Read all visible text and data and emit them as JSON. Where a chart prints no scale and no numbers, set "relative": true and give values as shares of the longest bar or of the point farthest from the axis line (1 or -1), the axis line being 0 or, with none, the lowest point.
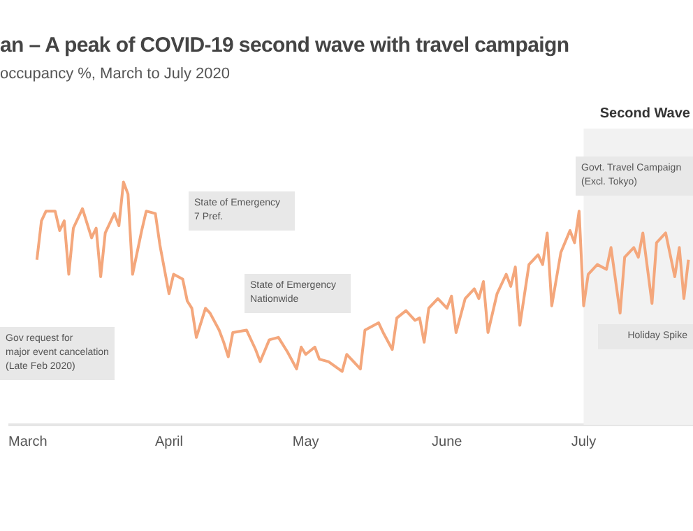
{
  "chart_data": {
    "type": "line",
    "title": "an – A peak of COVID-19 second wave with travel campaign",
    "subtitle": "occupancy %, March to July 2020",
    "relative": true,
    "grid": false,
    "legend": false,
    "marker": "none",
    "line_style": "solid",
    "tick_labels": "x",
    "xlim": [
      "--02-25",
      "--07-25"
    ],
    "xticks": [
      {
        "value": "--03-01",
        "label": "March"
      },
      {
        "value": "--04-01",
        "label": "April"
      },
      {
        "value": "--05-01",
        "label": "May"
      },
      {
        "value": "--06-01",
        "label": "June"
      },
      {
        "value": "--07-01",
        "label": "July"
      }
    ],
    "series": [
      {
        "color": "#f4a77c",
        "x": [
          "--03-03",
          "--03-04",
          "--03-05",
          "--03-07",
          "--03-08",
          "--03-09",
          "--03-10",
          "--03-11",
          "--03-13",
          "--03-15",
          "--03-16",
          "--03-17",
          "--03-18",
          "--03-20",
          "--03-21",
          "--03-22",
          "--03-23",
          "--03-24",
          "--03-26",
          "--03-27",
          "--03-29",
          "--03-30",
          "--04-01",
          "--04-02",
          "--04-03",
          "--04-04",
          "--04-05",
          "--04-06",
          "--04-07",
          "--04-09",
          "--04-10",
          "--04-12",
          "--04-13",
          "--04-14",
          "--04-15",
          "--04-18",
          "--04-20",
          "--04-21",
          "--04-23",
          "--04-25",
          "--04-27",
          "--04-29",
          "--04-30",
          "--05-01",
          "--05-03",
          "--05-04",
          "--05-06",
          "--05-09",
          "--05-10",
          "--05-11",
          "--05-13",
          "--05-14",
          "--05-17",
          "--05-18",
          "--05-20",
          "--05-21",
          "--05-23",
          "--05-25",
          "--05-26",
          "--05-27",
          "--05-28",
          "--05-30",
          "--06-01",
          "--06-02",
          "--06-03",
          "--06-05",
          "--06-07",
          "--06-08",
          "--06-09",
          "--06-10",
          "--06-12",
          "--06-14",
          "--06-15",
          "--06-16",
          "--06-17",
          "--06-19",
          "--06-21",
          "--06-22",
          "--06-23",
          "--06-24",
          "--06-26",
          "--06-28",
          "--06-29",
          "--06-30",
          "--07-01",
          "--07-02",
          "--07-04",
          "--07-06",
          "--07-07",
          "--07-09",
          "--07-10",
          "--07-12",
          "--07-13",
          "--07-14",
          "--07-16",
          "--07-17",
          "--07-19",
          "--07-21",
          "--07-22",
          "--07-23",
          "--07-24"
        ],
        "values": [
          0.68,
          0.84,
          0.88,
          0.88,
          0.8,
          0.84,
          0.62,
          0.81,
          0.89,
          0.77,
          0.81,
          0.61,
          0.79,
          0.87,
          0.82,
          1.0,
          0.95,
          0.62,
          0.8,
          0.88,
          0.87,
          0.74,
          0.54,
          0.62,
          0.61,
          0.6,
          0.51,
          0.48,
          0.36,
          0.48,
          0.46,
          0.39,
          0.34,
          0.28,
          0.38,
          0.39,
          0.31,
          0.26,
          0.35,
          0.36,
          0.3,
          0.23,
          0.32,
          0.29,
          0.32,
          0.27,
          0.26,
          0.22,
          0.29,
          0.27,
          0.23,
          0.39,
          0.42,
          0.38,
          0.31,
          0.44,
          0.47,
          0.43,
          0.44,
          0.34,
          0.48,
          0.52,
          0.48,
          0.53,
          0.38,
          0.52,
          0.56,
          0.52,
          0.59,
          0.38,
          0.54,
          0.62,
          0.57,
          0.65,
          0.41,
          0.66,
          0.7,
          0.66,
          0.79,
          0.49,
          0.71,
          0.8,
          0.75,
          0.88,
          0.49,
          0.62,
          0.66,
          0.64,
          0.73,
          0.46,
          0.69,
          0.73,
          0.69,
          0.79,
          0.5,
          0.75,
          0.79,
          0.61,
          0.73,
          0.52,
          0.68
        ]
      }
    ],
    "bands": [
      {
        "axis": "x",
        "from": "--07-01",
        "to": "--07-25",
        "label": "Second Wave",
        "color": "#f2f2f2"
      }
    ],
    "annotations": [
      "Gov request for\nmajor event cancelation\n(Late Feb 2020)",
      "State of Emergency\n7 Pref.",
      "State of Emergency\nNationwide",
      "Govt. Travel Campaign\n(Excl. Tokyo)",
      "Holiday Spike"
    ]
  }
}
